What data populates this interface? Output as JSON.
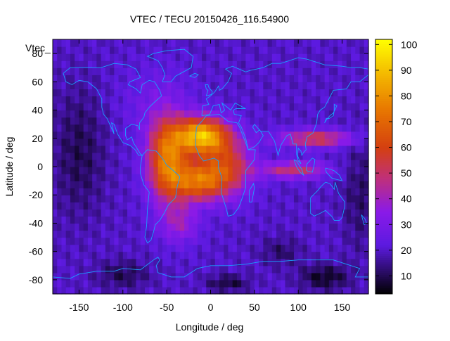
{
  "chart_data": {
    "type": "heatmap",
    "title": "VTEC / TECU 20150426_116.54900",
    "xlabel": "Longitude / deg",
    "ylabel": "Latitude / deg",
    "xlim": [
      -180,
      180
    ],
    "ylim": [
      -90,
      90
    ],
    "xticks": [
      -150,
      -100,
      -50,
      0,
      50,
      100,
      150
    ],
    "yticks": [
      -80,
      -60,
      -40,
      -20,
      0,
      20,
      40,
      60,
      80
    ],
    "key_label": "Vtec_",
    "colorbar": {
      "range": [
        3,
        102
      ],
      "ticks": [
        10,
        20,
        30,
        40,
        50,
        60,
        70,
        80,
        90,
        100
      ]
    },
    "colormap_stops": [
      {
        "v": 3,
        "color": "#000000"
      },
      {
        "v": 22,
        "color": "#5c1ae0"
      },
      {
        "v": 35,
        "color": "#8a1ae8"
      },
      {
        "v": 48,
        "color": "#c0307a"
      },
      {
        "v": 60,
        "color": "#d44010"
      },
      {
        "v": 75,
        "color": "#e87800"
      },
      {
        "v": 90,
        "color": "#f5c000"
      },
      {
        "v": 102,
        "color": "#ffff00"
      }
    ],
    "grid_resolution_deg": 5,
    "background_vtec": 20,
    "features": [
      {
        "name": "equatorial-anomaly-north-crest",
        "lon": -10,
        "lat": 22,
        "vtec": 90
      },
      {
        "name": "america-crest",
        "lon": -50,
        "lat": 5,
        "vtec": 75
      },
      {
        "name": "south-atlantic-crest",
        "lon": -15,
        "lat": -10,
        "vtec": 70
      },
      {
        "name": "asia-plume-north",
        "lon": 120,
        "lat": 20,
        "vtec": 58
      },
      {
        "name": "asia-plume-south",
        "lon": 100,
        "lat": -2,
        "vtec": 52
      },
      {
        "name": "south-pacific-low",
        "lon": 130,
        "lat": -78,
        "vtec": 4
      },
      {
        "name": "antarctic-low",
        "lon": 20,
        "lat": -82,
        "vtec": 8
      }
    ]
  }
}
